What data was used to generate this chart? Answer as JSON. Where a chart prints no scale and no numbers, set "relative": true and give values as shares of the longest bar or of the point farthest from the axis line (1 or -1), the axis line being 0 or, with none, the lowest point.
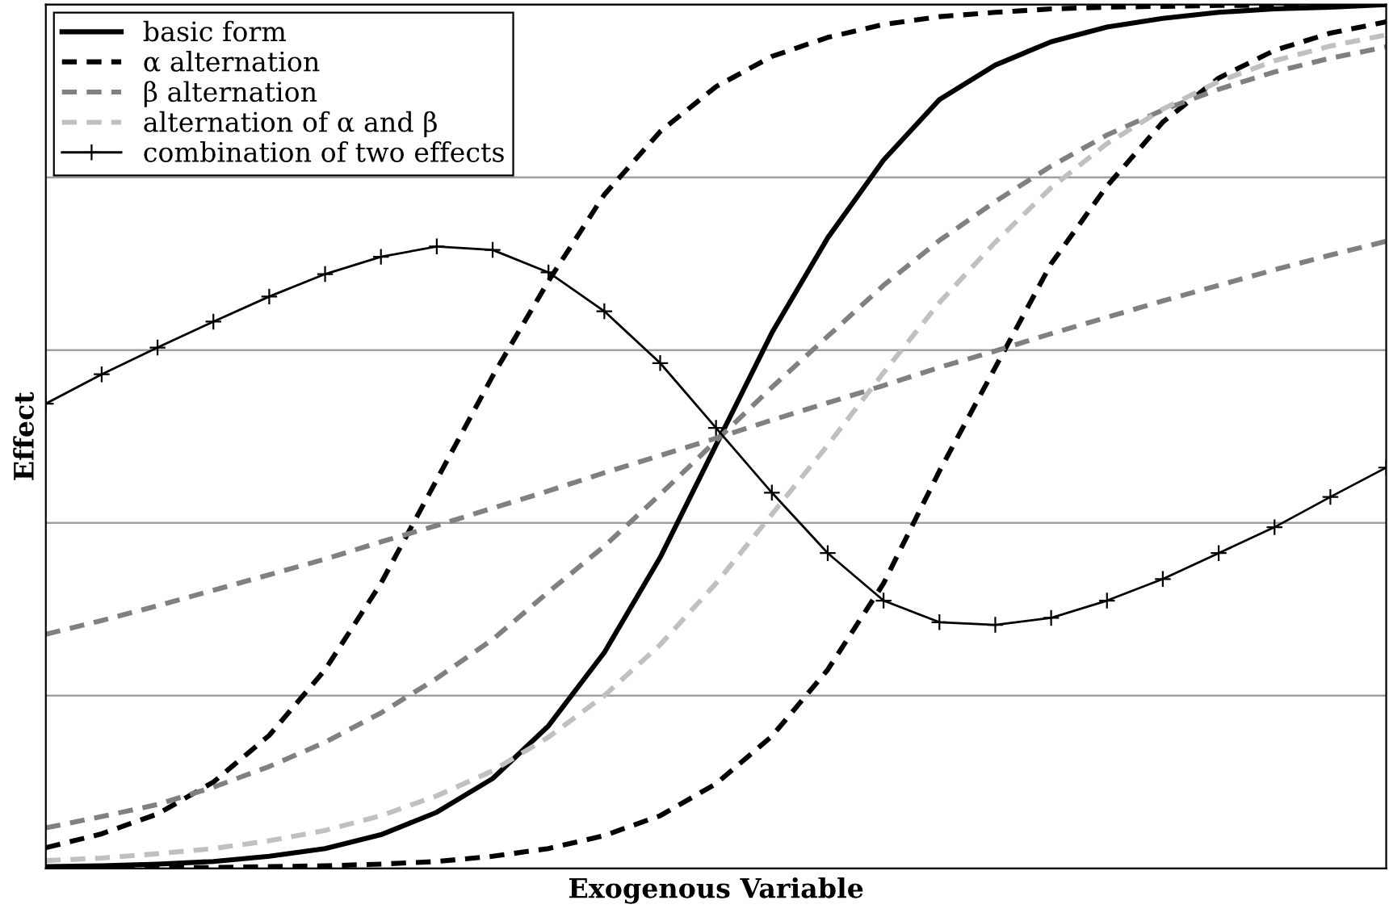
{
  "chart_data": {
    "type": "line",
    "relative": true,
    "xlabel": "Exogenous Variable",
    "ylabel": "Effect",
    "grid": "y",
    "legend": "top left",
    "tick_labels": false,
    "categories": [
      null,
      null,
      null,
      null,
      null,
      null,
      null,
      null,
      null,
      null,
      null,
      null,
      null,
      null,
      null,
      null,
      null,
      null,
      null,
      null,
      null,
      null,
      null,
      null,
      null
    ],
    "series": [
      {
        "name": "basic form",
        "color": "#000000",
        "line_style": "solid",
        "values": [
          0.002,
          0.003,
          0.005,
          0.008,
          0.014,
          0.023,
          0.039,
          0.065,
          0.104,
          0.165,
          0.25,
          0.36,
          0.49,
          0.62,
          0.73,
          0.82,
          0.89,
          0.93,
          0.957,
          0.974,
          0.984,
          0.991,
          0.995,
          0.997,
          1.0
        ]
      },
      {
        "name": "α alternation",
        "color": "#000000",
        "line_style": "dashed",
        "values": [
          0.024,
          0.04,
          0.063,
          0.1,
          0.154,
          0.23,
          0.33,
          0.45,
          0.57,
          0.68,
          0.78,
          0.853,
          0.905,
          0.94,
          0.962,
          0.977,
          0.986,
          0.991,
          0.995,
          0.997,
          0.998,
          0.999,
          0.999,
          1.0,
          1.0
        ]
      },
      {
        "color": "#000000",
        "line_style": "dashed",
        "values": [
          0.0,
          0.0,
          0.001,
          0.001,
          0.002,
          0.003,
          0.005,
          0.008,
          0.014,
          0.023,
          0.038,
          0.061,
          0.098,
          0.153,
          0.23,
          0.33,
          0.46,
          0.58,
          0.7,
          0.79,
          0.864,
          0.915,
          0.947,
          0.967,
          0.98
        ]
      },
      {
        "name": "β alternation",
        "color": "#808080",
        "line_style": "dashed",
        "values": [
          0.047,
          0.06,
          0.074,
          0.094,
          0.118,
          0.146,
          0.18,
          0.22,
          0.265,
          0.32,
          0.373,
          0.433,
          0.495,
          0.557,
          0.616,
          0.675,
          0.727,
          0.772,
          0.813,
          0.849,
          0.878,
          0.902,
          0.922,
          0.938,
          0.951
        ]
      },
      {
        "color": "#808080",
        "line_style": "dashed",
        "values": [
          0.271,
          0.287,
          0.304,
          0.322,
          0.34,
          0.358,
          0.378,
          0.397,
          0.417,
          0.437,
          0.458,
          0.478,
          0.498,
          0.519,
          0.539,
          0.559,
          0.58,
          0.599,
          0.619,
          0.638,
          0.657,
          0.675,
          0.693,
          0.71,
          0.726
        ]
      },
      {
        "name": "alternation of α and β",
        "color": "#c0c0c0",
        "line_style": "dashed",
        "values": [
          0.009,
          0.012,
          0.017,
          0.023,
          0.032,
          0.044,
          0.061,
          0.084,
          0.113,
          0.152,
          0.2,
          0.259,
          0.33,
          0.41,
          0.49,
          0.574,
          0.655,
          0.725,
          0.788,
          0.839,
          0.879,
          0.911,
          0.935,
          0.952,
          0.965
        ]
      },
      {
        "name": "combination of two effects",
        "color": "#000000",
        "line_style": "solid",
        "marker": "cross",
        "values": [
          0.538,
          0.572,
          0.603,
          0.633,
          0.662,
          0.688,
          0.708,
          0.72,
          0.716,
          0.69,
          0.645,
          0.585,
          0.51,
          0.435,
          0.365,
          0.31,
          0.285,
          0.282,
          0.29,
          0.31,
          0.335,
          0.365,
          0.395,
          0.43,
          0.464
        ]
      }
    ]
  }
}
